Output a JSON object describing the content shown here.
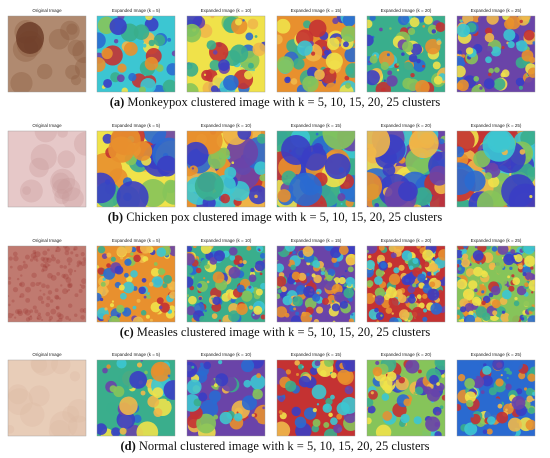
{
  "rows": [
    {
      "panels": [
        "Original Image",
        "Expanded Image (k = 5)",
        "Expanded Image (k = 10)",
        "Expanded Image (k = 15)",
        "Expanded Image (k = 20)",
        "Expanded Image (k = 25)"
      ],
      "caption": {
        "label": "(a)",
        "text": "Monkeypox clustered image with k = 5, 10, 15, 20, 25 clusters"
      }
    },
    {
      "panels": [
        "Original Image",
        "Expanded Image (k = 5)",
        "Expanded Image (k = 10)",
        "Expanded Image (k = 15)",
        "Expanded Image (k = 20)",
        "Expanded Image (k = 25)"
      ],
      "caption": {
        "label": "(b)",
        "text": "Chicken pox clustered image with k = 5, 10, 15, 20, 25 clusters"
      }
    },
    {
      "panels": [
        "Original Image",
        "Expanded Image (k = 5)",
        "Expanded Image (k = 10)",
        "Expanded Image (k = 15)",
        "Expanded Image (k = 20)",
        "Expanded Image (k = 25)"
      ],
      "caption": {
        "label": "(c)",
        "text": "Measles clustered image with k = 5, 10, 15, 20, 25 clusters"
      }
    },
    {
      "panels": [
        "Original Image",
        "Expanded Image (k = 5)",
        "Expanded Image (k = 10)",
        "Expanded Image (k = 15)",
        "Expanded Image (k = 20)",
        "Expanded Image (k = 25)"
      ],
      "caption": {
        "label": "(d)",
        "text": "Normal clustered image with k = 5, 10, 15, 20, 25 clusters"
      }
    }
  ]
}
